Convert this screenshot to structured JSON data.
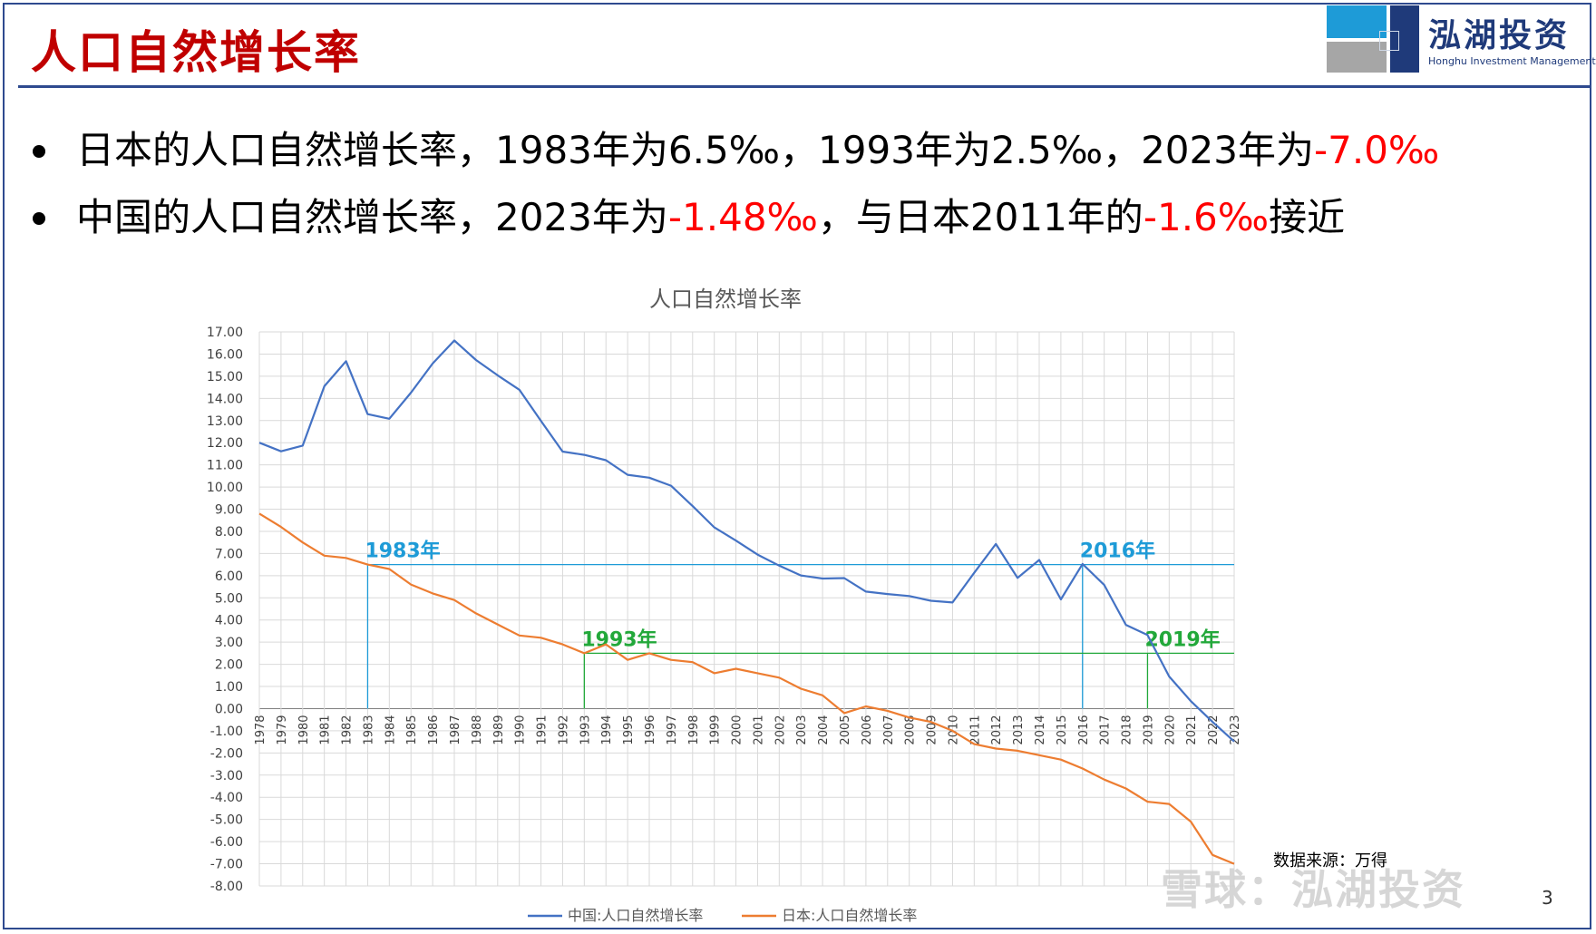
{
  "slide": {
    "title": "人口自然增长率",
    "logo_cn": "泓湖投资",
    "logo_en": "Honghu Investment Management",
    "bullets": [
      [
        {
          "t": "日本的人口自然增长率，1983年为6.5‰，1993年为2.5‰，2023年为",
          "red": false
        },
        {
          "t": "-7.0‰",
          "red": true
        }
      ],
      [
        {
          "t": "中国的人口自然增长率，2023年为",
          "red": false
        },
        {
          "t": "-1.48‰",
          "red": true
        },
        {
          "t": "，与日本2011年的",
          "red": false
        },
        {
          "t": "-1.6‰",
          "red": true
        },
        {
          "t": "接近",
          "red": false
        }
      ]
    ],
    "source": "数据来源：万得",
    "watermark": "雪球：泓湖投资",
    "page_number": "3"
  },
  "colors": {
    "china": "#4472c4",
    "japan": "#ed7d31",
    "ref_blue": "#1e9bd7",
    "ref_green": "#22a83a",
    "title_red": "#c00000",
    "grid": "#d9d9d9"
  },
  "chart_data": {
    "type": "line",
    "title": "人口自然增长率",
    "x": [
      "1978",
      "1979",
      "1980",
      "1981",
      "1982",
      "1983",
      "1984",
      "1985",
      "1986",
      "1987",
      "1988",
      "1989",
      "1990",
      "1991",
      "1992",
      "1993",
      "1994",
      "1995",
      "1996",
      "1997",
      "1998",
      "1999",
      "2000",
      "2001",
      "2002",
      "2003",
      "2004",
      "2005",
      "2006",
      "2007",
      "2008",
      "2009",
      "2010",
      "2011",
      "2012",
      "2013",
      "2014",
      "2015",
      "2016",
      "2017",
      "2018",
      "2019",
      "2020",
      "2021",
      "2022",
      "2023"
    ],
    "ylim": [
      -8,
      17
    ],
    "ytick_step": 1,
    "grid": true,
    "legend": "bottom",
    "series": [
      {
        "name": "中国:人口自然增长率",
        "color": "#4472c4",
        "values": [
          12.0,
          11.61,
          11.87,
          14.55,
          15.68,
          13.29,
          13.08,
          14.26,
          15.57,
          16.61,
          15.73,
          15.04,
          14.39,
          12.98,
          11.6,
          11.45,
          11.21,
          10.55,
          10.42,
          10.06,
          9.14,
          8.18,
          7.58,
          6.95,
          6.45,
          6.01,
          5.87,
          5.89,
          5.28,
          5.17,
          5.08,
          4.87,
          4.79,
          6.13,
          7.43,
          5.9,
          6.71,
          4.93,
          6.53,
          5.58,
          3.78,
          3.32,
          1.45,
          0.34,
          -0.6,
          -1.48
        ]
      },
      {
        "name": "日本:人口自然增长率",
        "color": "#ed7d31",
        "values": [
          8.8,
          8.2,
          7.5,
          6.9,
          6.8,
          6.5,
          6.3,
          5.6,
          5.2,
          4.9,
          4.3,
          3.8,
          3.3,
          3.2,
          2.9,
          2.5,
          2.9,
          2.2,
          2.5,
          2.2,
          2.1,
          1.6,
          1.8,
          1.6,
          1.4,
          0.9,
          0.6,
          -0.2,
          0.1,
          -0.1,
          -0.4,
          -0.6,
          -1.0,
          -1.6,
          -1.8,
          -1.9,
          -2.1,
          -2.3,
          -2.7,
          -3.2,
          -3.6,
          -4.2,
          -4.3,
          -5.1,
          -6.6,
          -7.0
        ]
      }
    ],
    "annotations": [
      {
        "label": "1983年",
        "x": "1983",
        "y": 6.5,
        "color": "#1e9bd7",
        "hline_to": "2023"
      },
      {
        "label": "2016年",
        "x": "2016",
        "y": 6.5,
        "color": "#1e9bd7"
      },
      {
        "label": "1993年",
        "x": "1993",
        "y": 2.5,
        "color": "#22a83a",
        "hline_to": "2023"
      },
      {
        "label": "2019年",
        "x": "2019",
        "y": 2.5,
        "color": "#22a83a"
      }
    ]
  }
}
